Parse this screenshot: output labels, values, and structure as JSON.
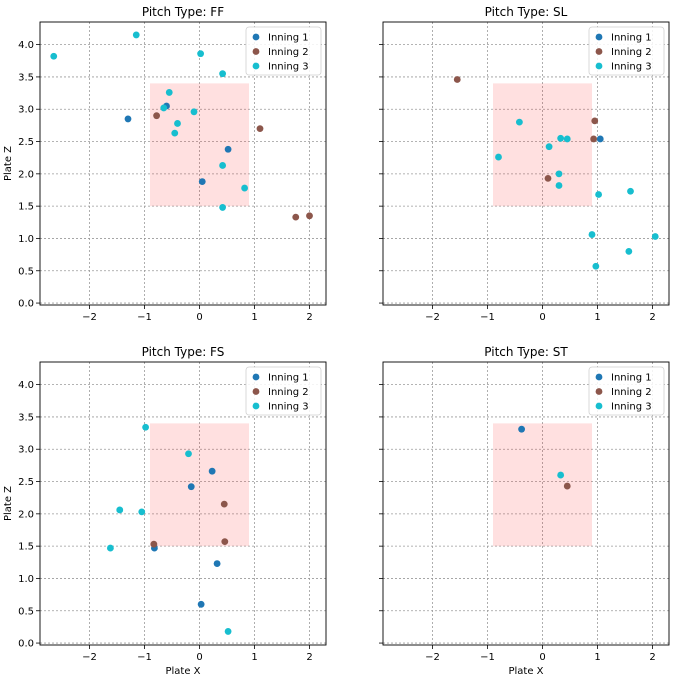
{
  "chart_data": [
    {
      "type": "scatter",
      "title": "Pitch Type: FF",
      "xlabel": "",
      "ylabel": "Plate Z",
      "xlim": [
        -2.9,
        2.3
      ],
      "ylim": [
        -0.03,
        4.35
      ],
      "x_ticks": [
        -2,
        -1,
        0,
        1,
        2
      ],
      "y_ticks": [
        0.0,
        0.5,
        1.0,
        1.5,
        2.0,
        2.5,
        3.0,
        3.5,
        4.0
      ],
      "strike_zone": {
        "x": [
          -0.9,
          0.9
        ],
        "z": [
          1.5,
          3.4
        ]
      },
      "legend": "upper right",
      "grid": true,
      "series": [
        {
          "name": "Inning 1",
          "color": "#1f77b4",
          "points": [
            [
              -1.3,
              2.85
            ],
            [
              -0.6,
              3.05
            ],
            [
              0.05,
              1.88
            ],
            [
              0.52,
              2.38
            ]
          ]
        },
        {
          "name": "Inning 2",
          "color": "#8c564b",
          "points": [
            [
              -0.78,
              2.9
            ],
            [
              1.1,
              2.7
            ],
            [
              1.75,
              1.33
            ],
            [
              2.0,
              1.35
            ]
          ]
        },
        {
          "name": "Inning 3",
          "color": "#17becf",
          "points": [
            [
              -2.65,
              3.82
            ],
            [
              -1.15,
              4.15
            ],
            [
              0.02,
              3.86
            ],
            [
              0.42,
              3.55
            ],
            [
              -0.55,
              3.26
            ],
            [
              -0.65,
              3.02
            ],
            [
              -0.1,
              2.96
            ],
            [
              -0.4,
              2.78
            ],
            [
              -0.45,
              2.63
            ],
            [
              0.42,
              2.13
            ],
            [
              0.82,
              1.78
            ],
            [
              0.42,
              1.48
            ]
          ]
        }
      ]
    },
    {
      "type": "scatter",
      "title": "Pitch Type: SL",
      "xlabel": "",
      "ylabel": "",
      "xlim": [
        -2.9,
        2.3
      ],
      "ylim": [
        -0.03,
        4.35
      ],
      "x_ticks": [
        -2,
        -1,
        0,
        1,
        2
      ],
      "y_ticks": [
        0.0,
        0.5,
        1.0,
        1.5,
        2.0,
        2.5,
        3.0,
        3.5,
        4.0
      ],
      "strike_zone": {
        "x": [
          -0.9,
          0.9
        ],
        "z": [
          1.5,
          3.4
        ]
      },
      "legend": "upper right",
      "grid": true,
      "series": [
        {
          "name": "Inning 1",
          "color": "#1f77b4",
          "points": [
            [
              1.05,
              2.54
            ]
          ]
        },
        {
          "name": "Inning 2",
          "color": "#8c564b",
          "points": [
            [
              -1.55,
              3.46
            ],
            [
              0.95,
              2.82
            ],
            [
              0.93,
              2.54
            ],
            [
              0.1,
              1.93
            ]
          ]
        },
        {
          "name": "Inning 3",
          "color": "#17becf",
          "points": [
            [
              -0.42,
              2.8
            ],
            [
              0.33,
              2.55
            ],
            [
              0.45,
              2.54
            ],
            [
              0.12,
              2.42
            ],
            [
              -0.8,
              2.26
            ],
            [
              0.3,
              2.0
            ],
            [
              0.3,
              1.82
            ],
            [
              1.02,
              1.68
            ],
            [
              1.6,
              1.73
            ],
            [
              0.9,
              1.06
            ],
            [
              2.05,
              1.03
            ],
            [
              1.57,
              0.8
            ],
            [
              0.97,
              0.57
            ]
          ]
        }
      ]
    },
    {
      "type": "scatter",
      "title": "Pitch Type: FS",
      "xlabel": "Plate X",
      "ylabel": "Plate Z",
      "xlim": [
        -2.9,
        2.3
      ],
      "ylim": [
        -0.03,
        4.35
      ],
      "x_ticks": [
        -2,
        -1,
        0,
        1,
        2
      ],
      "y_ticks": [
        0.0,
        0.5,
        1.0,
        1.5,
        2.0,
        2.5,
        3.0,
        3.5,
        4.0
      ],
      "strike_zone": {
        "x": [
          -0.9,
          0.9
        ],
        "z": [
          1.5,
          3.4
        ]
      },
      "legend": "upper right",
      "grid": true,
      "series": [
        {
          "name": "Inning 1",
          "color": "#1f77b4",
          "points": [
            [
              0.23,
              2.66
            ],
            [
              -0.15,
              2.42
            ],
            [
              -0.82,
              1.47
            ],
            [
              0.32,
              1.23
            ],
            [
              0.03,
              0.6
            ]
          ]
        },
        {
          "name": "Inning 2",
          "color": "#8c564b",
          "points": [
            [
              0.45,
              2.15
            ],
            [
              -0.83,
              1.53
            ],
            [
              0.46,
              1.57
            ]
          ]
        },
        {
          "name": "Inning 3",
          "color": "#17becf",
          "points": [
            [
              -0.98,
              3.34
            ],
            [
              -0.2,
              2.93
            ],
            [
              -1.45,
              2.06
            ],
            [
              -1.05,
              2.03
            ],
            [
              -1.62,
              1.47
            ],
            [
              0.52,
              0.18
            ]
          ]
        }
      ]
    },
    {
      "type": "scatter",
      "title": "Pitch Type: ST",
      "xlabel": "Plate X",
      "ylabel": "",
      "xlim": [
        -2.9,
        2.3
      ],
      "ylim": [
        -0.03,
        4.35
      ],
      "x_ticks": [
        -2,
        -1,
        0,
        1,
        2
      ],
      "y_ticks": [
        0.0,
        0.5,
        1.0,
        1.5,
        2.0,
        2.5,
        3.0,
        3.5,
        4.0
      ],
      "strike_zone": {
        "x": [
          -0.9,
          0.9
        ],
        "z": [
          1.5,
          3.4
        ]
      },
      "legend": "upper right",
      "grid": true,
      "series": [
        {
          "name": "Inning 1",
          "color": "#1f77b4",
          "points": [
            [
              -0.38,
              3.31
            ]
          ]
        },
        {
          "name": "Inning 2",
          "color": "#8c564b",
          "points": [
            [
              0.45,
              2.43
            ]
          ]
        },
        {
          "name": "Inning 3",
          "color": "#17becf",
          "points": [
            [
              0.33,
              2.6
            ]
          ]
        }
      ]
    }
  ]
}
